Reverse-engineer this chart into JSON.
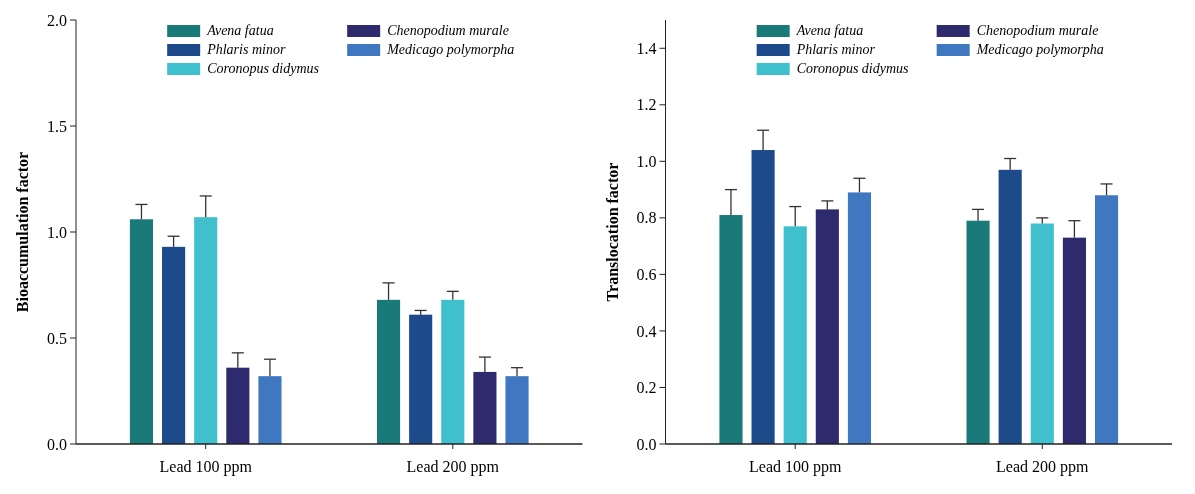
{
  "chart_data": [
    {
      "type": "bar",
      "ylabel": "Bioaccumulation factor",
      "categories": [
        "Lead 100 ppm",
        "Lead 200 ppm"
      ],
      "ylim": [
        0,
        2.0
      ],
      "yticks": [
        {
          "value": 0,
          "label": "0.0"
        },
        0.5,
        {
          "value": 1,
          "label": "1.0"
        },
        1.5,
        {
          "value": 2,
          "label": "2.0"
        }
      ],
      "legend": "top",
      "series": [
        {
          "name": "Avena fatua",
          "color": "#1a7a7a",
          "values": [
            1.06,
            0.68
          ],
          "errors": [
            [
              1.06,
              1.13
            ],
            [
              0.68,
              0.76
            ]
          ]
        },
        {
          "name": "Phlaris minor",
          "color": "#1c4a8a",
          "values": [
            0.93,
            0.61
          ],
          "errors": [
            [
              0.93,
              0.98
            ],
            [
              0.61,
              0.63
            ]
          ]
        },
        {
          "name": "Coronopus didymus",
          "color": "#40c0cc",
          "values": [
            1.07,
            0.68
          ],
          "errors": [
            [
              1.07,
              1.17
            ],
            [
              0.68,
              0.72
            ]
          ]
        },
        {
          "name": "Chenopodium murale",
          "color": "#2e2a6e",
          "values": [
            0.36,
            0.34
          ],
          "errors": [
            [
              0.36,
              0.43
            ],
            [
              0.34,
              0.41
            ]
          ]
        },
        {
          "name": "Medicago polymorpha",
          "color": "#3f78c0",
          "values": [
            0.32,
            0.32
          ],
          "errors": [
            [
              0.32,
              0.4
            ],
            [
              0.32,
              0.36
            ]
          ]
        }
      ]
    },
    {
      "type": "bar",
      "ylabel": "Translocation factor",
      "categories": [
        "Lead 100 ppm",
        "Lead 200 ppm"
      ],
      "ylim": [
        0,
        1.5
      ],
      "yticks": [
        {
          "value": 0,
          "label": "0.0"
        },
        0.2,
        0.4,
        0.6,
        0.8,
        {
          "value": 1,
          "label": "1.0"
        },
        1.2,
        1.4
      ],
      "legend": "top",
      "series": [
        {
          "name": "Avena fatua",
          "color": "#1a7a7a",
          "values": [
            0.81,
            0.79
          ],
          "errors": [
            [
              0.81,
              0.9
            ],
            [
              0.79,
              0.83
            ]
          ]
        },
        {
          "name": "Phlaris minor",
          "color": "#1c4a8a",
          "values": [
            1.04,
            0.97
          ],
          "errors": [
            [
              1.04,
              1.11
            ],
            [
              0.97,
              1.01
            ]
          ]
        },
        {
          "name": "Coronopus didymus",
          "color": "#40c0cc",
          "values": [
            0.77,
            0.78
          ],
          "errors": [
            [
              0.77,
              0.84
            ],
            [
              0.78,
              0.8
            ]
          ]
        },
        {
          "name": "Chenopodium murale",
          "color": "#2e2a6e",
          "values": [
            0.83,
            0.73
          ],
          "errors": [
            [
              0.83,
              0.86
            ],
            [
              0.73,
              0.79
            ]
          ]
        },
        {
          "name": "Medicago polymorpha",
          "color": "#3f78c0",
          "values": [
            0.89,
            0.88
          ],
          "errors": [
            [
              0.89,
              0.94
            ],
            [
              0.88,
              0.92
            ]
          ]
        }
      ]
    }
  ]
}
